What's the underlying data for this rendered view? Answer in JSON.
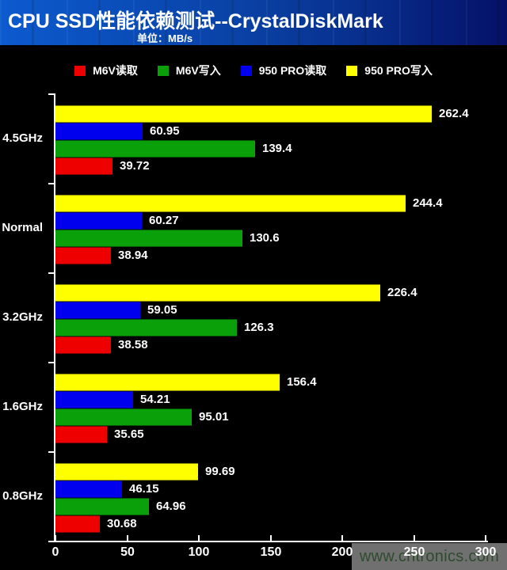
{
  "header": {
    "title": "CPU SSD性能依赖测试--CrystalDiskMark",
    "subtitle": "单位：MB/s"
  },
  "watermark": {
    "text": "www.cntronics.com"
  },
  "chart_data": {
    "type": "bar",
    "orientation": "horizontal",
    "title": "CPU SSD性能依赖测试--CrystalDiskMark",
    "unit_label": "单位：MB/s",
    "categories": [
      "4.5GHz",
      "Normal",
      "3.2GHz",
      "1.6GHz",
      "0.8GHz"
    ],
    "series": [
      {
        "key": "m6v-read",
        "name": "M6V读取",
        "color": "#ee0000",
        "values": [
          39.72,
          38.94,
          38.58,
          35.65,
          30.68
        ]
      },
      {
        "key": "m6v-write",
        "name": "M6V写入",
        "color": "#0aa00a",
        "values": [
          139.4,
          130.6,
          126.3,
          95.01,
          64.96
        ]
      },
      {
        "key": "950pro-read",
        "name": "950 PRO读取",
        "color": "#0000ee",
        "values": [
          60.95,
          60.27,
          59.05,
          54.21,
          46.15
        ]
      },
      {
        "key": "950pro-write",
        "name": "950 PRO写入",
        "color": "#ffff00",
        "values": [
          262.4,
          244.4,
          226.4,
          156.4,
          99.69
        ]
      }
    ],
    "bar_order_top_to_bottom": [
      "950 PRO写入",
      "950 PRO读取",
      "M6V写入",
      "M6V读取"
    ],
    "xlim": [
      0,
      300
    ],
    "x_ticks": [
      0,
      50,
      100,
      150,
      200,
      250,
      300
    ],
    "legend_position": "top",
    "grid": false,
    "background_color": "#000000",
    "axis_color": "#ffffff",
    "text_color": "#ffffff"
  }
}
